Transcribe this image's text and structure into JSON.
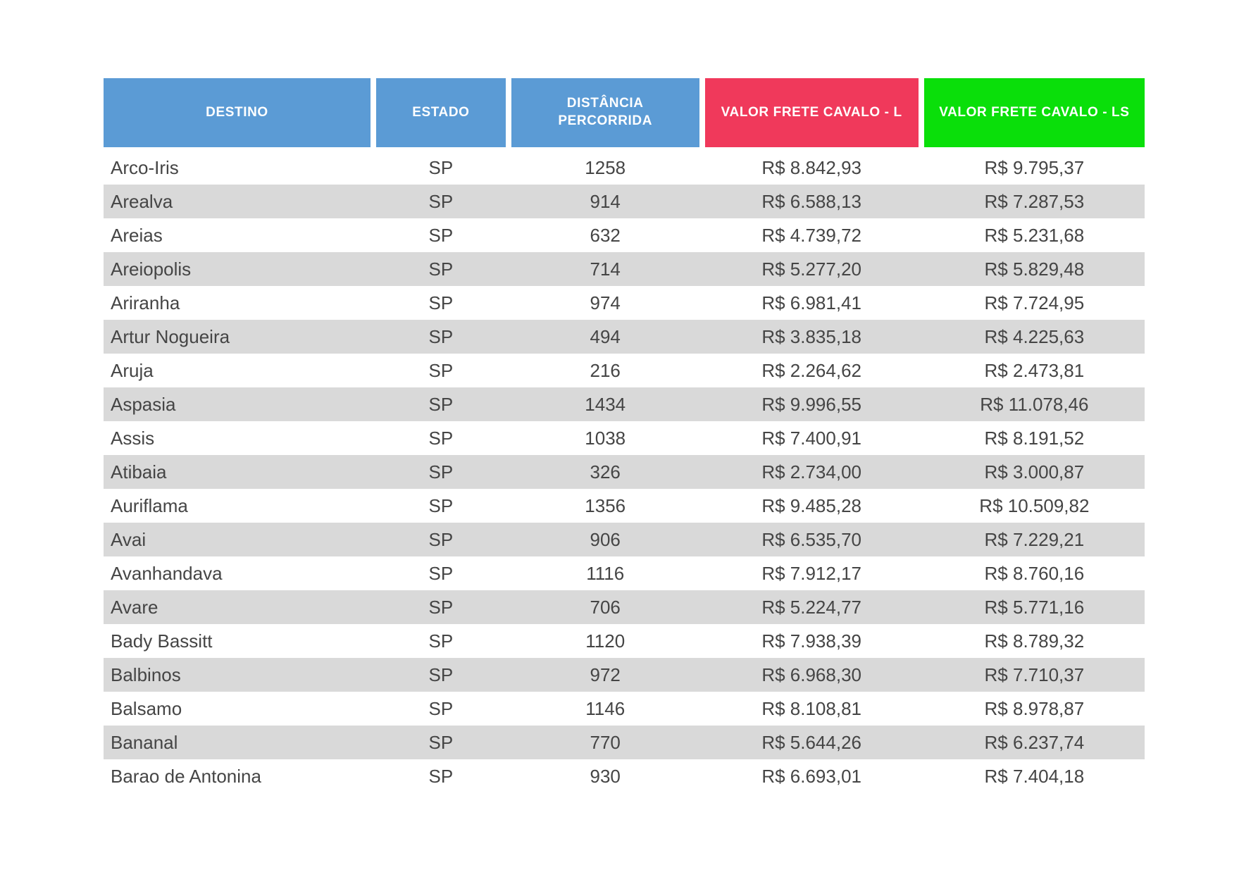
{
  "table": {
    "columns": [
      {
        "id": "destino",
        "label": "DESTINO",
        "color": "#5B9BD5"
      },
      {
        "id": "estado",
        "label": "ESTADO",
        "color": "#5B9BD5"
      },
      {
        "id": "distancia",
        "label": "DISTÂNCIA\nPERCORRIDA",
        "color": "#5B9BD5"
      },
      {
        "id": "valor_l",
        "label": "VALOR FRETE CAVALO - L",
        "color": "#F0395B"
      },
      {
        "id": "valor_ls",
        "label": "VALOR FRETE CAVALO - LS",
        "color": "#0ADF0A"
      }
    ],
    "stripe_color": "#D9D9D9",
    "row_color": "#FFFFFF",
    "text_color": "#454545",
    "rows": [
      [
        "Arco-Iris",
        "SP",
        "1258",
        "R$ 8.842,93",
        "R$ 9.795,37"
      ],
      [
        "Arealva",
        "SP",
        "914",
        "R$ 6.588,13",
        "R$ 7.287,53"
      ],
      [
        "Areias",
        "SP",
        "632",
        "R$ 4.739,72",
        "R$ 5.231,68"
      ],
      [
        "Areiopolis",
        "SP",
        "714",
        "R$ 5.277,20",
        "R$ 5.829,48"
      ],
      [
        "Ariranha",
        "SP",
        "974",
        "R$ 6.981,41",
        "R$ 7.724,95"
      ],
      [
        "Artur Nogueira",
        "SP",
        "494",
        "R$ 3.835,18",
        "R$ 4.225,63"
      ],
      [
        "Aruja",
        "SP",
        "216",
        "R$ 2.264,62",
        "R$ 2.473,81"
      ],
      [
        "Aspasia",
        "SP",
        "1434",
        "R$ 9.996,55",
        "R$ 11.078,46"
      ],
      [
        "Assis",
        "SP",
        "1038",
        "R$ 7.400,91",
        "R$ 8.191,52"
      ],
      [
        "Atibaia",
        "SP",
        "326",
        "R$ 2.734,00",
        "R$ 3.000,87"
      ],
      [
        "Auriflama",
        "SP",
        "1356",
        "R$ 9.485,28",
        "R$ 10.509,82"
      ],
      [
        "Avai",
        "SP",
        "906",
        "R$ 6.535,70",
        "R$ 7.229,21"
      ],
      [
        "Avanhandava",
        "SP",
        "1116",
        "R$ 7.912,17",
        "R$ 8.760,16"
      ],
      [
        "Avare",
        "SP",
        "706",
        "R$ 5.224,77",
        "R$ 5.771,16"
      ],
      [
        "Bady Bassitt",
        "SP",
        "1120",
        "R$ 7.938,39",
        "R$ 8.789,32"
      ],
      [
        "Balbinos",
        "SP",
        "972",
        "R$ 6.968,30",
        "R$ 7.710,37"
      ],
      [
        "Balsamo",
        "SP",
        "1146",
        "R$ 8.108,81",
        "R$ 8.978,87"
      ],
      [
        "Bananal",
        "SP",
        "770",
        "R$ 5.644,26",
        "R$ 6.237,74"
      ],
      [
        "Barao de Antonina",
        "SP",
        "930",
        "R$ 6.693,01",
        "R$ 7.404,18"
      ]
    ]
  }
}
